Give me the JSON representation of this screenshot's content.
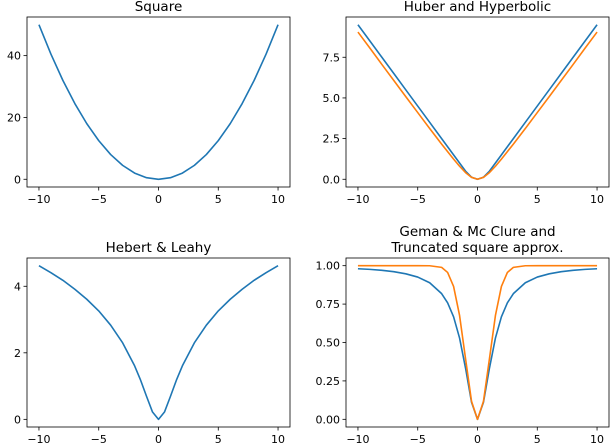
{
  "colors": {
    "series1": "#1f77b4",
    "series2": "#ff7f0e"
  },
  "chart_data": [
    {
      "type": "line",
      "title": "Square",
      "xlabel": "",
      "ylabel": "",
      "xlim": [
        -11,
        11
      ],
      "ylim": [
        -2.5,
        52.5
      ],
      "xticks": [
        -10,
        -5,
        0,
        5,
        10
      ],
      "xtick_labels": [
        "−10",
        "−5",
        "0",
        "5",
        "10"
      ],
      "yticks": [
        0,
        20,
        40
      ],
      "ytick_labels": [
        "0",
        "20",
        "40"
      ],
      "x": [
        -10,
        -9,
        -8,
        -7,
        -6,
        -5,
        -4,
        -3,
        -2,
        -1,
        0,
        1,
        2,
        3,
        4,
        5,
        6,
        7,
        8,
        9,
        10
      ],
      "series": [
        {
          "values": [
            50,
            40.5,
            32,
            24.5,
            18,
            12.5,
            8,
            4.5,
            2,
            0.5,
            0,
            0.5,
            2,
            4.5,
            8,
            12.5,
            18,
            24.5,
            32,
            40.5,
            50
          ]
        }
      ]
    },
    {
      "type": "line",
      "title": "Huber and Hyperbolic",
      "xlabel": "",
      "ylabel": "",
      "xlim": [
        -11,
        11
      ],
      "ylim": [
        -0.475,
        9.975
      ],
      "xticks": [
        -10,
        -5,
        0,
        5,
        10
      ],
      "xtick_labels": [
        "−10",
        "−5",
        "0",
        "5",
        "10"
      ],
      "yticks": [
        0,
        2.5,
        5,
        7.5
      ],
      "ytick_labels": [
        "0.0",
        "2.5",
        "5.0",
        "7.5"
      ],
      "x": [
        -10,
        -9,
        -8,
        -7,
        -6,
        -5,
        -4,
        -3,
        -2,
        -1.5,
        -1,
        -0.5,
        0,
        0.5,
        1,
        1.5,
        2,
        3,
        4,
        5,
        6,
        7,
        8,
        9,
        10
      ],
      "series": [
        {
          "values": [
            9.5,
            8.5,
            7.5,
            6.5,
            5.5,
            4.5,
            3.5,
            2.5,
            1.5,
            1.0,
            0.5,
            0.125,
            0,
            0.125,
            0.5,
            1.0,
            1.5,
            2.5,
            3.5,
            4.5,
            5.5,
            6.5,
            7.5,
            8.5,
            9.5
          ]
        },
        {
          "values": [
            9.05,
            8.06,
            7.06,
            6.07,
            5.08,
            4.1,
            3.12,
            2.16,
            1.24,
            0.8,
            0.41,
            0.12,
            0,
            0.12,
            0.41,
            0.8,
            1.24,
            2.16,
            3.12,
            4.1,
            5.08,
            6.07,
            7.06,
            8.06,
            9.05
          ]
        }
      ]
    },
    {
      "type": "line",
      "title": "Hebert & Leahy",
      "xlabel": "",
      "ylabel": "",
      "xlim": [
        -11,
        11
      ],
      "ylim": [
        -0.23,
        4.85
      ],
      "xticks": [
        -10,
        -5,
        0,
        5,
        10
      ],
      "xtick_labels": [
        "−10",
        "−5",
        "0",
        "5",
        "10"
      ],
      "yticks": [
        0,
        2,
        4
      ],
      "ytick_labels": [
        "0",
        "2",
        "4"
      ],
      "x": [
        -10,
        -9,
        -8,
        -7,
        -6,
        -5,
        -4,
        -3,
        -2,
        -1.5,
        -1,
        -0.5,
        0,
        0.5,
        1,
        1.5,
        2,
        3,
        4,
        5,
        6,
        7,
        8,
        9,
        10
      ],
      "series": [
        {
          "values": [
            4.62,
            4.41,
            4.18,
            3.91,
            3.61,
            3.26,
            2.83,
            2.3,
            1.61,
            1.18,
            0.69,
            0.22,
            0,
            0.22,
            0.69,
            1.18,
            1.61,
            2.3,
            2.83,
            3.26,
            3.61,
            3.91,
            4.18,
            4.41,
            4.62
          ]
        }
      ]
    },
    {
      "type": "line",
      "title": "Geman & Mc Clure and\nTruncated square approx.",
      "xlabel": "",
      "ylabel": "",
      "xlim": [
        -11,
        11
      ],
      "ylim": [
        -0.05,
        1.05
      ],
      "xticks": [
        -10,
        -5,
        0,
        5,
        10
      ],
      "xtick_labels": [
        "−10",
        "−5",
        "0",
        "5",
        "10"
      ],
      "yticks": [
        0,
        0.25,
        0.5,
        0.75,
        1
      ],
      "ytick_labels": [
        "0.00",
        "0.25",
        "0.50",
        "0.75",
        "1.00"
      ],
      "x": [
        -10,
        -9,
        -8,
        -7,
        -6,
        -5,
        -4,
        -3,
        -2.5,
        -2,
        -1.5,
        -1,
        -0.5,
        0,
        0.5,
        1,
        1.5,
        2,
        2.5,
        3,
        4,
        5,
        6,
        7,
        8,
        9,
        10
      ],
      "series": [
        {
          "values": [
            0.98,
            0.976,
            0.97,
            0.961,
            0.947,
            0.926,
            0.889,
            0.818,
            0.758,
            0.667,
            0.529,
            0.333,
            0.111,
            0,
            0.111,
            0.333,
            0.529,
            0.667,
            0.758,
            0.818,
            0.889,
            0.926,
            0.947,
            0.961,
            0.97,
            0.976,
            0.98
          ]
        },
        {
          "values": [
            1,
            1,
            1,
            1,
            1,
            1,
            0.9996,
            0.989,
            0.956,
            0.865,
            0.676,
            0.394,
            0.118,
            0,
            0.118,
            0.394,
            0.676,
            0.865,
            0.956,
            0.989,
            0.9996,
            1,
            1,
            1,
            1,
            1,
            1
          ]
        }
      ]
    }
  ]
}
